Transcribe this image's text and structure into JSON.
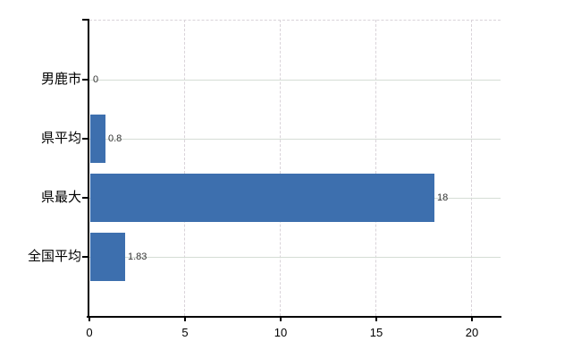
{
  "chart_data": {
    "type": "bar",
    "orientation": "horizontal",
    "title": "",
    "categories": [
      "男鹿市",
      "県平均",
      "県最大",
      "全国平均"
    ],
    "values": [
      0,
      0.8,
      18,
      1.83
    ],
    "value_labels": [
      "0",
      "0.8",
      "18",
      "1.83"
    ],
    "x_ticks": [
      "0",
      "5",
      "10",
      "15",
      "20"
    ],
    "x_tick_values": [
      0,
      5,
      10,
      15,
      20
    ],
    "xlim": [
      0,
      21.5
    ],
    "grid": {
      "horizontal": "solid",
      "vertical": "dashed",
      "top_border": "dashed"
    },
    "legend": "none",
    "colors": {
      "bar": "#3d6fae",
      "axis": "#000000",
      "grid_horizontal": "#d5ddd5",
      "grid_vertical": "#d9d3d9",
      "category_text": "#000000",
      "tick_text": "#000000",
      "value_text": "#333333",
      "background": "#ffffff"
    }
  }
}
